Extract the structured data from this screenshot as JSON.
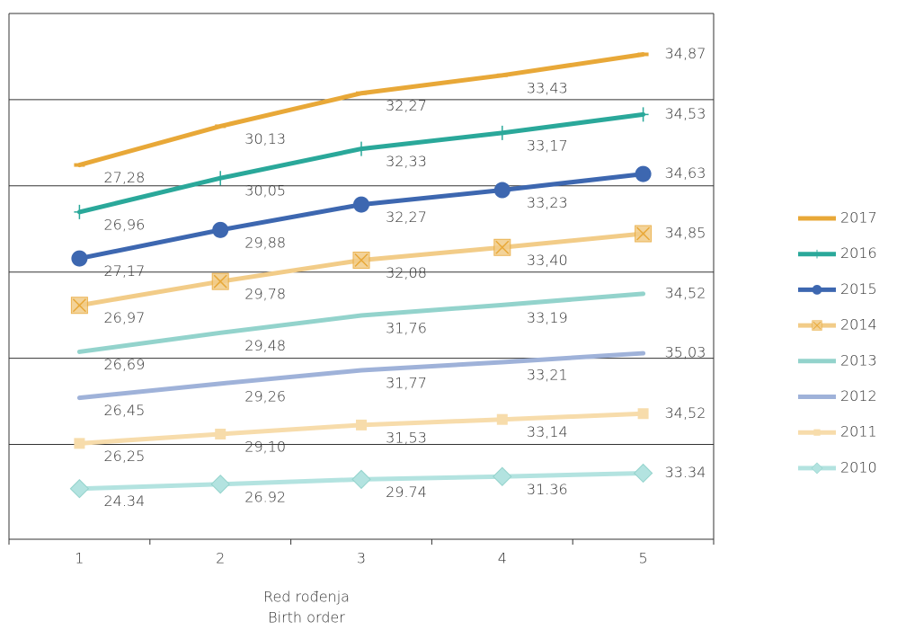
{
  "chart_data": {
    "type": "stacked-line",
    "categories": [
      "1",
      "2",
      "3",
      "4",
      "5"
    ],
    "xlabel": [
      "Red rođenja",
      "Birth order"
    ],
    "ylim": [
      -5,
      300
    ],
    "yticks": [
      50,
      100,
      150,
      200,
      250,
      300
    ],
    "grid": true,
    "legend": "right",
    "series": [
      {
        "name": "2010",
        "color": "#b3e3e0",
        "marker": "diamond",
        "values": [
          24.34,
          26.92,
          29.74,
          31.36,
          33.34
        ]
      },
      {
        "name": "2011",
        "color": "#f7dcab",
        "marker": "square",
        "values": [
          26.25,
          29.1,
          31.53,
          33.14,
          34.52
        ],
        "value_labels": [
          "26,25",
          "29,10",
          "31,53",
          "33,14",
          "34,52"
        ]
      },
      {
        "name": "2012",
        "color": "#9fb2d9",
        "marker": "none",
        "values": [
          26.45,
          29.26,
          31.77,
          33.21,
          35.03
        ],
        "value_labels": [
          "26,45",
          "29,26",
          "31,77",
          "33,21",
          "35,03"
        ]
      },
      {
        "name": "2013",
        "color": "#93d3cc",
        "marker": "none",
        "values": [
          26.69,
          29.48,
          31.76,
          33.19,
          34.52
        ],
        "value_labels": [
          "26,69",
          "29,48",
          "31,76",
          "33,19",
          "34,52"
        ]
      },
      {
        "name": "2014",
        "color": "#f2cc88",
        "marker": "square-x",
        "values": [
          26.97,
          29.78,
          32.08,
          33.4,
          34.85
        ],
        "value_labels": [
          "26,97",
          "29,78",
          "32,08",
          "33,40",
          "34,85"
        ]
      },
      {
        "name": "2015",
        "color": "#3d67b0",
        "marker": "circle",
        "values": [
          27.17,
          29.88,
          32.27,
          33.23,
          34.63
        ],
        "value_labels": [
          "27,17",
          "29,88",
          "32,27",
          "33,23",
          "34,63"
        ]
      },
      {
        "name": "2016",
        "color": "#2aa89a",
        "marker": "plus",
        "values": [
          26.96,
          30.05,
          32.33,
          33.17,
          34.53
        ],
        "value_labels": [
          "26,96",
          "30,05",
          "32,33",
          "33,17",
          "34,53"
        ]
      },
      {
        "name": "2017",
        "color": "#e8a838",
        "marker": "dash",
        "values": [
          27.28,
          30.13,
          32.27,
          33.43,
          34.87
        ],
        "value_labels": [
          "27,28",
          "30,13",
          "32,27",
          "33,43",
          "34,87"
        ]
      }
    ]
  }
}
